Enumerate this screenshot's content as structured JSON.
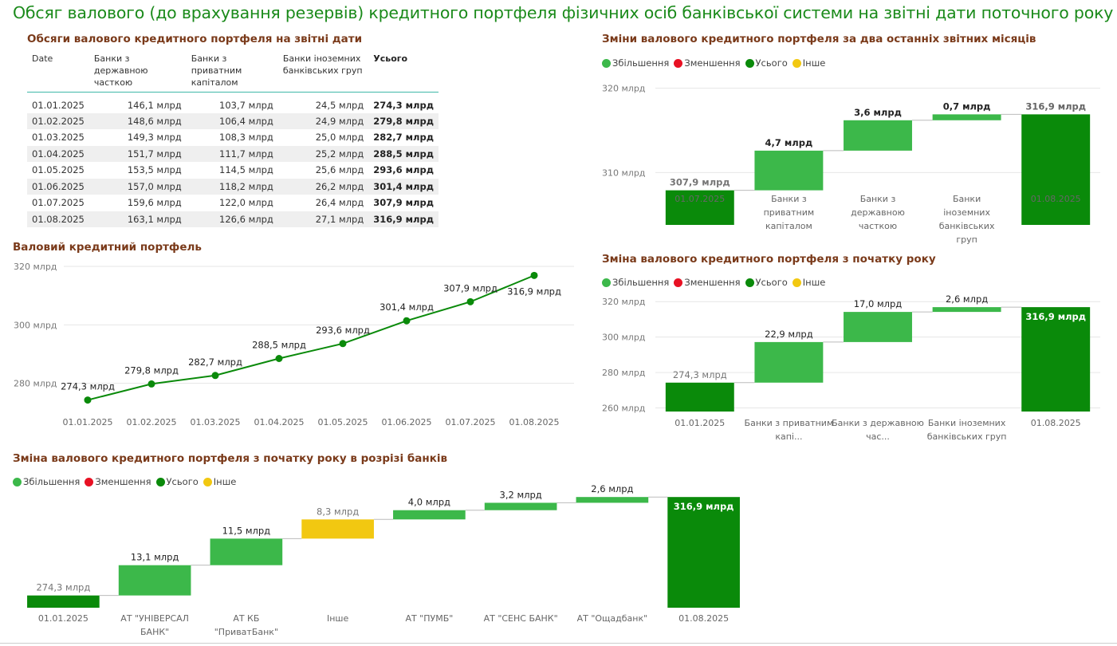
{
  "page": {
    "title": "Обсяг валового (до врахування резервів) кредитного портфеля фізичних осіб  банківської системи на звітні дати поточного року"
  },
  "colors": {
    "increase": "#3cb84a",
    "decrease": "#e81123",
    "total": "#0a8a0a",
    "other": "#f2c811",
    "title_brown": "#7a3a1a",
    "title_green": "#1a8a1a"
  },
  "legend": {
    "increase": "Збільшення",
    "decrease": "Зменшення",
    "total": "Усього",
    "other": "Інше"
  },
  "table": {
    "title": "Обсяги валового кредитного портфеля на звітні дати",
    "columns": [
      "Date",
      "Банки з державною часткою",
      "Банки з приватним капіталом",
      "Банки іноземних банківських груп",
      "Усього"
    ],
    "rows": [
      [
        "01.01.2025",
        "146,1 млрд",
        "103,7 млрд",
        "24,5 млрд",
        "274,3 млрд"
      ],
      [
        "01.02.2025",
        "148,6 млрд",
        "106,4 млрд",
        "24,9 млрд",
        "279,8 млрд"
      ],
      [
        "01.03.2025",
        "149,3 млрд",
        "108,3 млрд",
        "25,0 млрд",
        "282,7 млрд"
      ],
      [
        "01.04.2025",
        "151,7 млрд",
        "111,7 млрд",
        "25,2 млрд",
        "288,5 млрд"
      ],
      [
        "01.05.2025",
        "153,5 млрд",
        "114,5 млрд",
        "25,6 млрд",
        "293,6 млрд"
      ],
      [
        "01.06.2025",
        "157,0 млрд",
        "118,2 млрд",
        "26,2 млрд",
        "301,4 млрд"
      ],
      [
        "01.07.2025",
        "159,6 млрд",
        "122,0 млрд",
        "26,4 млрд",
        "307,9 млрд"
      ],
      [
        "01.08.2025",
        "163,1 млрд",
        "126,6 млрд",
        "27,1 млрд",
        "316,9 млрд"
      ]
    ]
  },
  "chart_data": [
    {
      "id": "waterfall-two-months",
      "type": "bar",
      "subtype": "waterfall",
      "title": "Зміни валового кредитного портфеля за два останніх звітних місяців",
      "ylim": [
        303.8,
        321
      ],
      "yticks": [
        310,
        320
      ],
      "ytick_labels": [
        "310 млрд",
        "320 млрд"
      ],
      "grid": true,
      "legend_position": "top-left",
      "bars": [
        {
          "category": "01.07.2025",
          "start": 0,
          "end": 307.9,
          "kind": "total",
          "label": "307,9 млрд"
        },
        {
          "category": "Банки з приватним капіталом",
          "start": 307.9,
          "end": 312.6,
          "kind": "increase",
          "label": "4,7 млрд"
        },
        {
          "category": "Банки з державною часткою",
          "start": 312.6,
          "end": 316.2,
          "kind": "increase",
          "label": "3,6 млрд"
        },
        {
          "category": "Банки іноземних банківських груп",
          "start": 316.2,
          "end": 316.9,
          "kind": "increase",
          "label": "0,7 млрд"
        },
        {
          "category": "01.08.2025",
          "start": 0,
          "end": 316.9,
          "kind": "total",
          "label": "316,9 млрд"
        }
      ]
    },
    {
      "id": "line-portfolio",
      "type": "line",
      "title": "Валовий кредитний портфель",
      "ylim": [
        272,
        320
      ],
      "yticks": [
        280,
        300,
        320
      ],
      "ytick_labels": [
        "280 млрд",
        "300 млрд",
        "320 млрд"
      ],
      "grid": true,
      "x": [
        "01.01.2025",
        "01.02.2025",
        "01.03.2025",
        "01.04.2025",
        "01.05.2025",
        "01.06.2025",
        "01.07.2025",
        "01.08.2025"
      ],
      "series": [
        {
          "values": [
            274.3,
            279.8,
            282.7,
            288.5,
            293.6,
            301.4,
            307.9,
            316.9
          ],
          "labels": [
            "274,3 млрд",
            "279,8 млрд",
            "282,7 млрд",
            "288,5 млрд",
            "293,6 млрд",
            "301,4 млрд",
            "307,9 млрд",
            "316,9 млрд"
          ]
        }
      ]
    },
    {
      "id": "waterfall-ytd",
      "type": "bar",
      "subtype": "waterfall",
      "title": "Зміна валового кредитного портфеля з початку року",
      "ylim": [
        258,
        321
      ],
      "yticks": [
        260,
        280,
        300,
        320
      ],
      "ytick_labels": [
        "260 млрд",
        "280 млрд",
        "300 млрд",
        "320 млрд"
      ],
      "grid": true,
      "legend_position": "top-left",
      "bars": [
        {
          "category": "01.01.2025",
          "start": 0,
          "end": 274.3,
          "kind": "total",
          "label": "274,3 млрд"
        },
        {
          "category": "Банки з приватним капі...",
          "start": 274.3,
          "end": 297.2,
          "kind": "increase",
          "label": "22,9 млрд"
        },
        {
          "category": "Банки з державною час...",
          "start": 297.2,
          "end": 314.2,
          "kind": "increase",
          "label": "17,0 млрд"
        },
        {
          "category": "Банки іноземних банківських груп",
          "start": 314.2,
          "end": 316.9,
          "kind": "increase",
          "label": "2,6 млрд"
        },
        {
          "category": "01.08.2025",
          "start": 0,
          "end": 316.9,
          "kind": "total",
          "label": "316,9 млрд"
        }
      ]
    },
    {
      "id": "waterfall-banks",
      "type": "bar",
      "subtype": "waterfall",
      "title": "Зміна валового кредитного портфеля з початку року в розрізі банків",
      "ylim": [
        269,
        318
      ],
      "grid": false,
      "legend_position": "top-left",
      "bars": [
        {
          "category": "01.01.2025",
          "start": 0,
          "end": 274.3,
          "kind": "total",
          "label": "274,3 млрд"
        },
        {
          "category": "АТ \"УНІВЕРСАЛ БАНК\"",
          "start": 274.3,
          "end": 287.4,
          "kind": "increase",
          "label": "13,1 млрд"
        },
        {
          "category": "АТ КБ \"ПриватБанк\"",
          "start": 287.4,
          "end": 298.9,
          "kind": "increase",
          "label": "11,5 млрд"
        },
        {
          "category": "Інше",
          "start": 298.9,
          "end": 307.2,
          "kind": "other",
          "label": "8,3 млрд"
        },
        {
          "category": "АТ \"ПУМБ\"",
          "start": 307.2,
          "end": 311.2,
          "kind": "increase",
          "label": "4,0 млрд"
        },
        {
          "category": "АТ \"СЕНС БАНК\"",
          "start": 311.2,
          "end": 314.4,
          "kind": "increase",
          "label": "3,2 млрд"
        },
        {
          "category": "АТ \"Ощадбанк\"",
          "start": 314.4,
          "end": 316.9,
          "kind": "increase",
          "label": "2,6 млрд"
        },
        {
          "category": "01.08.2025",
          "start": 0,
          "end": 316.9,
          "kind": "total",
          "label": "316,9 млрд"
        }
      ]
    }
  ]
}
